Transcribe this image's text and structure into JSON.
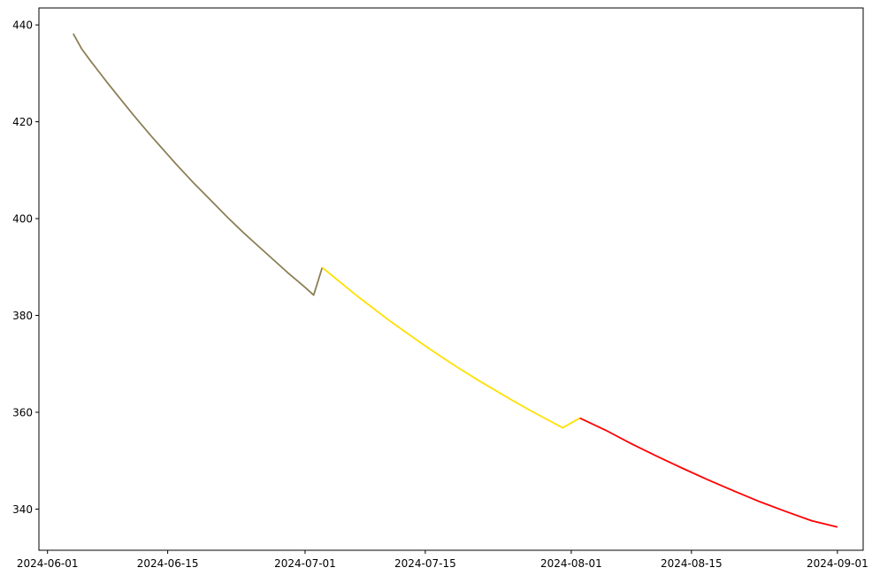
{
  "chart_data": {
    "type": "line",
    "title": "",
    "xlabel": "",
    "ylabel": "",
    "x_axis_kind": "date",
    "xlim": [
      "2024-05-31",
      "2024-09-04"
    ],
    "ylim": [
      331.5,
      443.5
    ],
    "grid": false,
    "legend": "none",
    "x_ticks": [
      "2024-06-01",
      "2024-06-15",
      "2024-07-01",
      "2024-07-15",
      "2024-08-01",
      "2024-08-15",
      "2024-09-01"
    ],
    "y_ticks": [
      340,
      360,
      380,
      400,
      420,
      440
    ],
    "series": [
      {
        "color": "#8b7f55",
        "points": [
          [
            "2024-06-04",
            438.2
          ],
          [
            "2024-06-05",
            435.0
          ],
          [
            "2024-06-06",
            432.6
          ],
          [
            "2024-06-07",
            430.3
          ],
          [
            "2024-06-08",
            428.0
          ],
          [
            "2024-06-09",
            425.8
          ],
          [
            "2024-06-10",
            423.6
          ],
          [
            "2024-06-11",
            421.4
          ],
          [
            "2024-06-12",
            419.3
          ],
          [
            "2024-06-13",
            417.2
          ],
          [
            "2024-06-14",
            415.2
          ],
          [
            "2024-06-15",
            413.2
          ],
          [
            "2024-06-16",
            411.2
          ],
          [
            "2024-06-17",
            409.3
          ],
          [
            "2024-06-18",
            407.4
          ],
          [
            "2024-06-19",
            405.6
          ],
          [
            "2024-06-20",
            403.8
          ],
          [
            "2024-06-21",
            402.0
          ],
          [
            "2024-06-22",
            400.2
          ],
          [
            "2024-06-23",
            398.5
          ],
          [
            "2024-06-24",
            396.8
          ],
          [
            "2024-06-25",
            395.2
          ],
          [
            "2024-06-26",
            393.6
          ],
          [
            "2024-06-27",
            392.0
          ],
          [
            "2024-06-28",
            390.4
          ],
          [
            "2024-06-29",
            388.8
          ],
          [
            "2024-06-30",
            387.3
          ],
          [
            "2024-07-01",
            385.8
          ],
          [
            "2024-07-02",
            384.2
          ],
          [
            "2024-07-03",
            389.9
          ]
        ]
      },
      {
        "color": "#ffe000",
        "points": [
          [
            "2024-07-03",
            389.9
          ],
          [
            "2024-07-05",
            387.0
          ],
          [
            "2024-07-07",
            384.1
          ],
          [
            "2024-07-09",
            381.4
          ],
          [
            "2024-07-11",
            378.7
          ],
          [
            "2024-07-13",
            376.2
          ],
          [
            "2024-07-15",
            373.7
          ],
          [
            "2024-07-17",
            371.3
          ],
          [
            "2024-07-19",
            369.0
          ],
          [
            "2024-07-21",
            366.8
          ],
          [
            "2024-07-23",
            364.7
          ],
          [
            "2024-07-25",
            362.6
          ],
          [
            "2024-07-27",
            360.6
          ],
          [
            "2024-07-29",
            358.7
          ],
          [
            "2024-07-31",
            356.8
          ],
          [
            "2024-08-02",
            358.8
          ]
        ]
      },
      {
        "color": "#ff0000",
        "points": [
          [
            "2024-08-02",
            358.8
          ],
          [
            "2024-08-05",
            356.3
          ],
          [
            "2024-08-08",
            353.5
          ],
          [
            "2024-08-11",
            350.9
          ],
          [
            "2024-08-14",
            348.4
          ],
          [
            "2024-08-17",
            346.0
          ],
          [
            "2024-08-20",
            343.7
          ],
          [
            "2024-08-23",
            341.5
          ],
          [
            "2024-08-26",
            339.5
          ],
          [
            "2024-08-29",
            337.6
          ],
          [
            "2024-09-01",
            336.3
          ]
        ]
      }
    ]
  }
}
